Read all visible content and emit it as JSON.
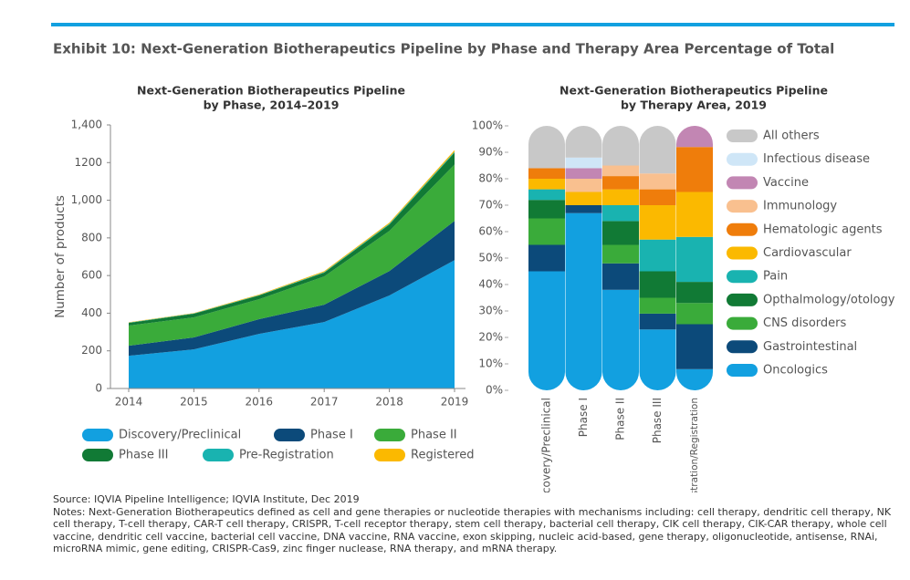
{
  "exhibit_title": "Exhibit 10: Next-Generation Biotherapeutics Pipeline by Phase and Therapy Area Percentage of Total",
  "chart_data": [
    {
      "type": "area",
      "stacked": true,
      "title": "Next-Generation Biotherapeutics Pipeline",
      "subtitle": "by Phase, 2014–2019",
      "y_label": "Number of products",
      "x": [
        2014,
        2015,
        2016,
        2017,
        2018,
        2019
      ],
      "xlim": [
        2014,
        2019
      ],
      "xticks": [
        2014,
        2015,
        2016,
        2017,
        2018,
        2019
      ],
      "ylim": [
        0,
        1400
      ],
      "yticks": [
        0,
        200,
        400,
        600,
        800,
        {
          "value": 1000,
          "label": "1,000"
        },
        1200,
        {
          "value": 1400,
          "label": "1,400"
        }
      ],
      "series": [
        {
          "name": "Discovery/Preclinical",
          "color": "#12a0e0",
          "values": [
            174,
            208,
            290,
            353,
            494,
            682
          ]
        },
        {
          "name": "Phase I",
          "color": "#0c4a7a",
          "values": [
            53,
            63,
            78,
            92,
            130,
            208
          ]
        },
        {
          "name": "Phase II",
          "color": "#3aab3a",
          "values": [
            107,
            107,
            106,
            150,
            213,
            300
          ]
        },
        {
          "name": "Phase III",
          "color": "#117a35",
          "values": [
            14,
            19,
            20,
            20,
            34,
            63
          ]
        },
        {
          "name": "Pre-Registration",
          "color": "#19b3b0",
          "values": [
            2,
            2,
            2,
            3,
            4,
            5
          ]
        },
        {
          "name": "Registered",
          "color": "#fbb900",
          "values": [
            2,
            2,
            3,
            5,
            6,
            8
          ]
        }
      ]
    },
    {
      "type": "bar",
      "stacked": true,
      "title": "Next-Generation Biotherapeutics Pipeline",
      "subtitle": "by Therapy Area, 2019",
      "categories": [
        "Discovery/Preclinical",
        "Phase I",
        "Phase II",
        "Phase III",
        "Pre-Registration/Registration"
      ],
      "ylim": [
        0,
        100
      ],
      "yticks": [
        {
          "value": 0,
          "label": "0%"
        },
        {
          "value": 10,
          "label": "10%"
        },
        {
          "value": 20,
          "label": "20%"
        },
        {
          "value": 30,
          "label": "30%"
        },
        {
          "value": 40,
          "label": "40%"
        },
        {
          "value": 50,
          "label": "50%"
        },
        {
          "value": 60,
          "label": "60%"
        },
        {
          "value": 70,
          "label": "70%"
        },
        {
          "value": 80,
          "label": "80%"
        },
        {
          "value": 90,
          "label": "90%"
        },
        {
          "value": 100,
          "label": "100%"
        }
      ],
      "series": [
        {
          "name": "Oncologics",
          "color": "#12a0e0",
          "values": [
            45,
            67,
            38,
            23,
            8
          ]
        },
        {
          "name": "Gastrointestinal",
          "color": "#0c4a7a",
          "values": [
            10,
            3,
            10,
            6,
            17
          ]
        },
        {
          "name": "CNS disorders",
          "color": "#3aab3a",
          "values": [
            10,
            0,
            7,
            6,
            8
          ]
        },
        {
          "name": "Opthalmology/otology",
          "color": "#117a35",
          "values": [
            7,
            0,
            9,
            10,
            8
          ]
        },
        {
          "name": "Pain",
          "color": "#19b3b0",
          "values": [
            4,
            0,
            6,
            12,
            17
          ]
        },
        {
          "name": "Cardiovascular",
          "color": "#fbb900",
          "values": [
            4,
            5,
            6,
            13,
            17
          ]
        },
        {
          "name": "Hematologic agents",
          "color": "#ef7d0b",
          "values": [
            4,
            0,
            5,
            6,
            17
          ]
        },
        {
          "name": "Immunology",
          "color": "#f9c08f",
          "values": [
            0,
            5,
            4,
            6,
            0
          ]
        },
        {
          "name": "Vaccine",
          "color": "#c286b3",
          "values": [
            0,
            4,
            0,
            0,
            8
          ]
        },
        {
          "name": "Infectious disease",
          "color": "#cfe6f7",
          "values": [
            0,
            4,
            0,
            0,
            0
          ]
        },
        {
          "name": "All others",
          "color": "#c8c8c8",
          "values": [
            16,
            12,
            15,
            18,
            0
          ]
        }
      ]
    }
  ],
  "source": "Source: IQVIA Pipeline Intelligence; IQVIA Institute, Dec 2019",
  "notes": "Notes: Next-Generation Biotherapeutics defined as cell and gene therapies or nucleotide therapies with mechanisms including: cell therapy, dendritic cell therapy, NK cell therapy, T-cell therapy, CAR-T cell therapy, CRISPR, T-cell receptor therapy, stem cell therapy, bacterial cell therapy, CIK cell therapy, CIK-CAR therapy, whole cell vaccine, dendritic cell vaccine, bacterial cell vaccine, DNA vaccine, RNA vaccine, exon skipping, nucleic acid-based, gene therapy, oligonucleotide, antisense, RNAi, microRNA mimic, gene editing, CRISPR-Cas9, zinc finger nuclease, RNA therapy, and mRNA therapy."
}
